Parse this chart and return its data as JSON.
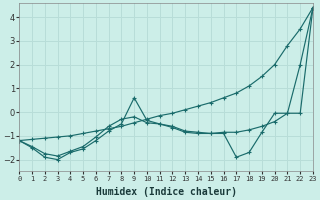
{
  "xlabel": "Humidex (Indice chaleur)",
  "background_color": "#cceee8",
  "grid_color": "#b8ddd8",
  "line_color": "#1a6b6b",
  "x_min": 0,
  "x_max": 23,
  "y_min": -2.5,
  "y_max": 4.6,
  "series": [
    {
      "x": [
        0,
        1,
        2,
        3,
        4,
        5,
        6,
        7,
        8,
        9,
        10,
        11,
        12,
        13,
        14,
        15,
        16,
        17,
        18,
        19,
        20,
        21,
        22,
        23
      ],
      "y": [
        -1.2,
        -1.15,
        -1.1,
        -1.05,
        -1.0,
        -0.9,
        -0.8,
        -0.7,
        -0.6,
        -0.45,
        -0.3,
        -0.15,
        -0.05,
        0.1,
        0.25,
        0.4,
        0.6,
        0.8,
        1.1,
        1.5,
        2.0,
        2.8,
        3.5,
        4.4
      ]
    },
    {
      "x": [
        0,
        1,
        2,
        3,
        4,
        5,
        6,
        7,
        8,
        9,
        10,
        11,
        12,
        13,
        14,
        15,
        16,
        17,
        18,
        19,
        20,
        21,
        22,
        23
      ],
      "y": [
        -1.2,
        -1.5,
        -1.9,
        -2.0,
        -1.7,
        -1.55,
        -1.2,
        -0.8,
        -0.5,
        0.6,
        -0.35,
        -0.5,
        -0.65,
        -0.85,
        -0.9,
        -0.9,
        -0.9,
        -1.9,
        -1.7,
        -0.85,
        -0.05,
        -0.05,
        2.0,
        4.4
      ]
    },
    {
      "x": [
        0,
        1,
        2,
        3,
        4,
        5,
        6,
        7,
        8,
        9,
        10,
        11,
        12,
        13,
        14,
        15,
        16,
        17,
        18,
        19,
        20,
        21,
        22,
        23
      ],
      "y": [
        -1.2,
        -1.45,
        -1.75,
        -1.85,
        -1.65,
        -1.45,
        -1.05,
        -0.6,
        -0.3,
        -0.2,
        -0.45,
        -0.5,
        -0.6,
        -0.8,
        -0.85,
        -0.9,
        -0.85,
        -0.85,
        -0.75,
        -0.6,
        -0.4,
        -0.05,
        -0.05,
        4.4
      ]
    }
  ],
  "yticks": [
    -2,
    -1,
    0,
    1,
    2,
    3,
    4
  ],
  "xtick_labels": [
    "0",
    "1",
    "2",
    "3",
    "4",
    "5",
    "6",
    "7",
    "8",
    "9",
    "10",
    "11",
    "12",
    "13",
    "14",
    "15",
    "16",
    "17",
    "18",
    "19",
    "20",
    "21",
    "22",
    "23"
  ]
}
